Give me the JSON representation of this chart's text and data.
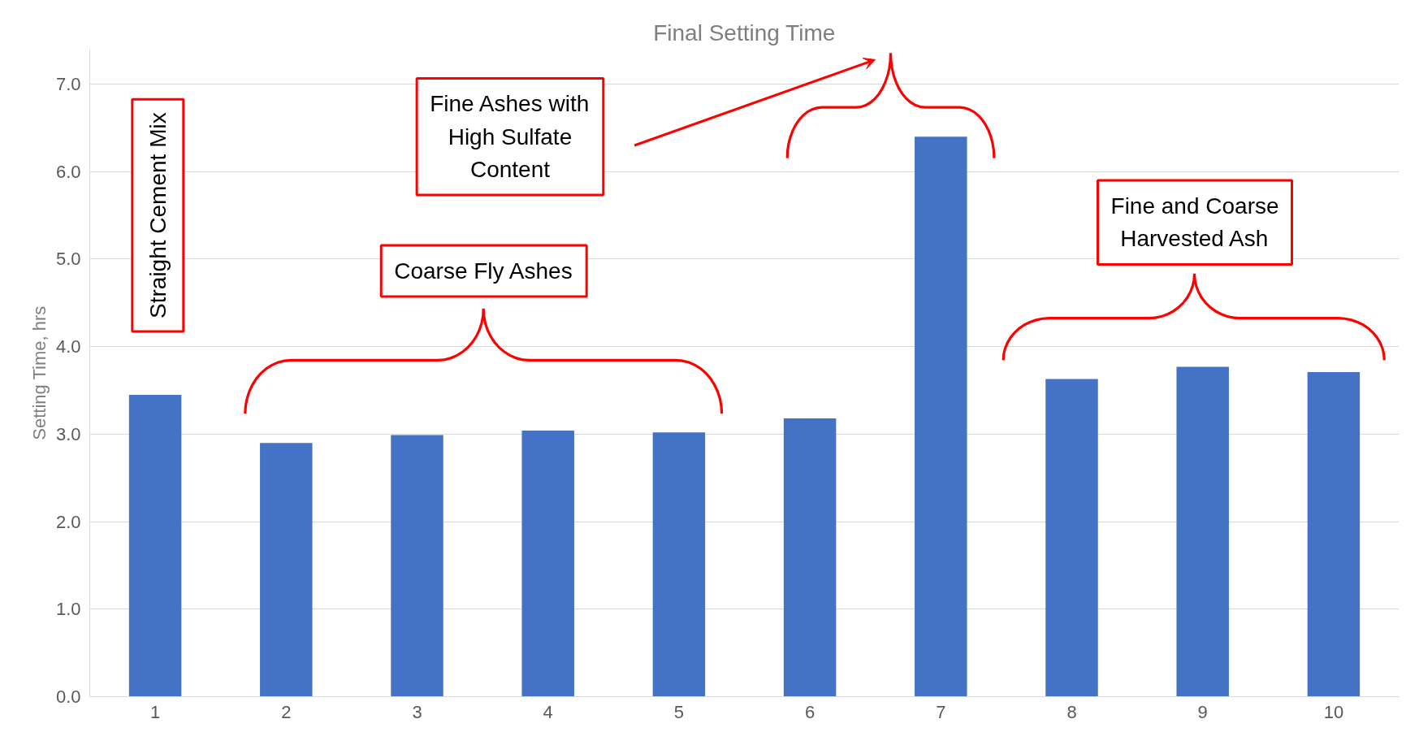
{
  "chart_data": {
    "type": "bar",
    "title": "Final Setting Time",
    "ylabel": "Setting Time, hrs",
    "categories": [
      "1",
      "2",
      "3",
      "4",
      "5",
      "6",
      "7",
      "8",
      "9",
      "10"
    ],
    "values": [
      3.45,
      2.9,
      2.99,
      3.04,
      3.02,
      3.18,
      6.4,
      3.63,
      3.77,
      3.71
    ],
    "color": "#4472c4",
    "ylim": [
      0,
      7.4
    ],
    "yticks": [
      {
        "value": 0,
        "label": "0.0"
      },
      {
        "value": 1,
        "label": "1.0"
      },
      {
        "value": 2,
        "label": "2.0"
      },
      {
        "value": 3,
        "label": "3.0"
      },
      {
        "value": 4,
        "label": "4.0"
      },
      {
        "value": 5,
        "label": "5.0"
      },
      {
        "value": 6,
        "label": "6.0"
      },
      {
        "value": 7,
        "label": "7.0"
      }
    ],
    "grid": "y",
    "annotations": [
      "Straight Cement Mix",
      "Fine Ashes with\nHigh Sulfate\nContent",
      "Coarse Fly Ashes",
      "Fine and Coarse\nHarvested Ash"
    ]
  }
}
